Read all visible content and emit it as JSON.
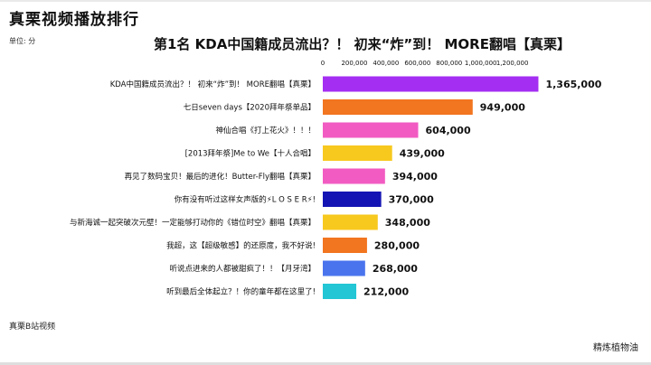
{
  "header": {
    "title": "真栗视频播放排行",
    "unit": "单位: 分",
    "subtitle": "第1名 KDA中国籍成员流出？！ 初来“炸”到！ MORE翻唱【真栗】"
  },
  "footer": {
    "source": "真栗B站视频",
    "watermark": "精炼植物油"
  },
  "chart_data": {
    "type": "bar",
    "orientation": "horizontal",
    "title": "第1名 KDA中国籍成员流出？！ 初来“炸”到！ MORE翻唱【真栗】",
    "xlim": [
      0,
      1400000
    ],
    "x_ticks": [
      0,
      200000,
      400000,
      600000,
      800000,
      1000000,
      1200000
    ],
    "x_tick_labels": [
      "0",
      "200,000",
      "400,000",
      "600,000",
      "800,000",
      "1,000,000",
      "1,200,000"
    ],
    "categories": [
      "KDA中国籍成员流出？！ 初来“炸”到！ MORE翻唱【真栗】",
      "七日seven days【2020拜年祭单品】",
      "神仙合唱《打上花火》！！！",
      "[2013拜年祭]Me to We【十人合唱】",
      "再见了数码宝贝！最后的进化！Butter-Fly翻唱【真栗】",
      "你有没有听过这样女声版的⚡L O S E R⚡!",
      "与新海诚一起突破次元壁！一定能够打动你的《错位时空》翻唱【真栗】",
      "我超，这【超级敏感】的还原度，我不好说!",
      "听说点进来的人都被甜疯了！！【月牙湾】",
      "听到最后全体起立？！你的童年都在这里了!"
    ],
    "values": [
      1365000,
      949000,
      604000,
      439000,
      394000,
      370000,
      348000,
      280000,
      268000,
      212000
    ],
    "value_labels": [
      "1,365,000",
      "949,000",
      "604,000",
      "439,000",
      "394,000",
      "370,000",
      "348,000",
      "280,000",
      "268,000",
      "212,000"
    ],
    "colors": [
      "#a42ef2",
      "#f2751f",
      "#f25bc2",
      "#f7c81e",
      "#f25bc2",
      "#1414b4",
      "#f7c81e",
      "#f2751f",
      "#4a74ee",
      "#22c6d4"
    ]
  }
}
